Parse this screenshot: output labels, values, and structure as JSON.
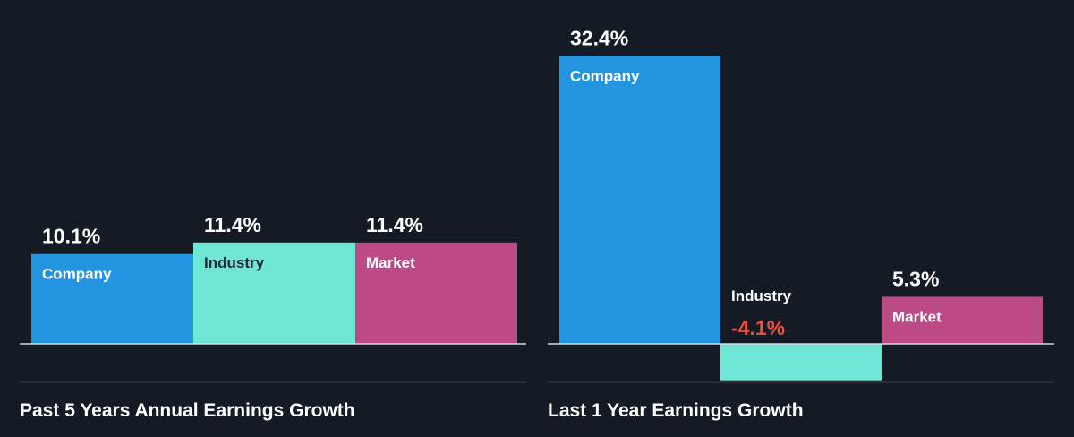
{
  "colors": {
    "background": "#151b24",
    "company": "#2394e0",
    "industry": "#6de6d6",
    "market": "#bb4a87",
    "negative_value": "#e8503f",
    "axis": "#d8dde3",
    "divider": "#3a4350"
  },
  "chart_data": [
    {
      "type": "bar",
      "title": "Past 5 Years Annual Earnings Growth",
      "categories": [
        "Company",
        "Industry",
        "Market"
      ],
      "values": [
        10.1,
        11.4,
        11.4
      ],
      "value_labels": [
        "10.1%",
        "11.4%",
        "11.4%"
      ],
      "unit": "%",
      "ylim": [
        -4.1,
        32.4
      ],
      "grid": false,
      "legend": "none"
    },
    {
      "type": "bar",
      "title": "Last 1 Year Earnings Growth",
      "categories": [
        "Company",
        "Industry",
        "Market"
      ],
      "values": [
        32.4,
        -4.1,
        5.3
      ],
      "value_labels": [
        "32.4%",
        "-4.1%",
        "5.3%"
      ],
      "unit": "%",
      "ylim": [
        -4.1,
        32.4
      ],
      "grid": false,
      "legend": "none"
    }
  ]
}
